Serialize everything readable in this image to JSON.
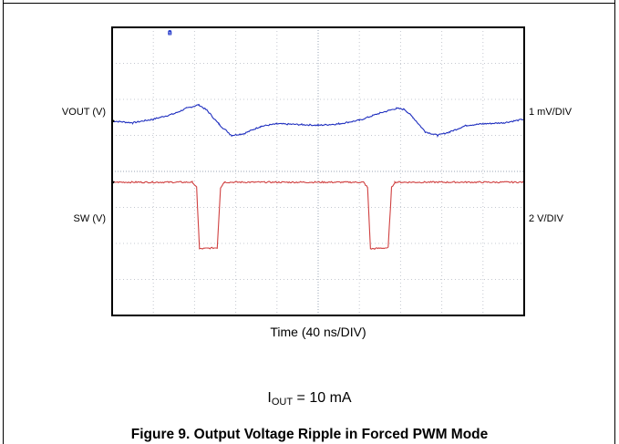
{
  "chart_data": {
    "type": "line",
    "title": "",
    "xlabel": "Time (40 ns/DIV)",
    "grid": true,
    "divisions": {
      "x": 10,
      "y": 8
    },
    "series": [
      {
        "name": "VOUT (V)",
        "scale": "1 mV/DIV",
        "color": "#1f2fbf",
        "units": "divisions",
        "points": [
          [
            0,
            5.4
          ],
          [
            0.5,
            5.35
          ],
          [
            1.0,
            5.45
          ],
          [
            1.5,
            5.6
          ],
          [
            1.8,
            5.75
          ],
          [
            2.1,
            5.85
          ],
          [
            2.3,
            5.7
          ],
          [
            2.6,
            5.3
          ],
          [
            2.9,
            5.0
          ],
          [
            3.2,
            5.05
          ],
          [
            3.6,
            5.25
          ],
          [
            4.0,
            5.32
          ],
          [
            4.6,
            5.3
          ],
          [
            5.0,
            5.28
          ],
          [
            5.5,
            5.32
          ],
          [
            6.0,
            5.42
          ],
          [
            6.5,
            5.62
          ],
          [
            6.9,
            5.75
          ],
          [
            7.1,
            5.72
          ],
          [
            7.3,
            5.5
          ],
          [
            7.6,
            5.1
          ],
          [
            7.9,
            5.0
          ],
          [
            8.2,
            5.1
          ],
          [
            8.6,
            5.28
          ],
          [
            9.0,
            5.32
          ],
          [
            9.5,
            5.35
          ],
          [
            10.0,
            5.45
          ]
        ]
      },
      {
        "name": "SW (V)",
        "scale": "2 V/DIV",
        "color": "#d04040",
        "units": "divisions",
        "points": [
          [
            0,
            3.7
          ],
          [
            1.95,
            3.7
          ],
          [
            2.05,
            3.55
          ],
          [
            2.12,
            1.85
          ],
          [
            2.55,
            1.88
          ],
          [
            2.63,
            3.55
          ],
          [
            2.72,
            3.7
          ],
          [
            6.1,
            3.7
          ],
          [
            6.2,
            3.55
          ],
          [
            6.27,
            1.85
          ],
          [
            6.7,
            1.88
          ],
          [
            6.78,
            3.55
          ],
          [
            6.86,
            3.7
          ],
          [
            10.0,
            3.7
          ]
        ]
      }
    ],
    "marker": "1",
    "annotation": "I_OUT = 10 mA",
    "caption": "Figure 9. Output Voltage Ripple in Forced PWM Mode"
  },
  "labels": {
    "vout_left": "VOUT (V)",
    "vout_right": "1 mV/DIV",
    "sw_left": "SW (V)",
    "sw_right": "2 V/DIV",
    "xlabel": "Time (40 ns/DIV)",
    "cond_main": "I",
    "cond_sub": "OUT",
    "cond_rest": " = 10 mA",
    "caption": "Figure 9. Output Voltage Ripple in Forced PWM Mode"
  }
}
